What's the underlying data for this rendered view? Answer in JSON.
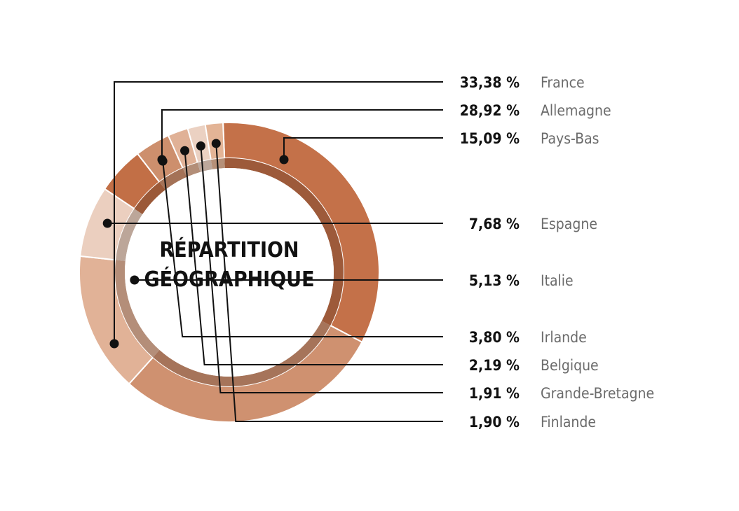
{
  "chart_data": {
    "type": "pie",
    "title": "RÉPARTITION GÉOGRAPHIQUE",
    "title_lines": [
      "RÉPARTITION",
      "GÉOGRAPHIQUE"
    ],
    "unit": "%",
    "slices": [
      {
        "label": "France",
        "value": 33.38,
        "display": "33,38 %",
        "color": "#c47149"
      },
      {
        "label": "Allemagne",
        "value": 28.92,
        "display": "28,92 %",
        "color": "#cf9170"
      },
      {
        "label": "Pays-Bas",
        "value": 15.09,
        "display": "15,09 %",
        "color": "#e1b297"
      },
      {
        "label": "Espagne",
        "value": 7.68,
        "display": "7,68 %",
        "color": "#ebcfbf"
      },
      {
        "label": "Italie",
        "value": 5.13,
        "display": "5,13 %",
        "color": "#c26f46"
      },
      {
        "label": "Irlande",
        "value": 3.8,
        "display": "3,80 %",
        "color": "#cd8f6d"
      },
      {
        "label": "Belgique",
        "value": 2.19,
        "display": "2,19 %",
        "color": "#e0b196"
      },
      {
        "label": "Grande-Bretagne",
        "value": 1.91,
        "display": "1,91 %",
        "color": "#ebd1c2"
      },
      {
        "label": "Finlande",
        "value": 1.9,
        "display": "1,90 %",
        "color": "#e3b496"
      }
    ]
  }
}
